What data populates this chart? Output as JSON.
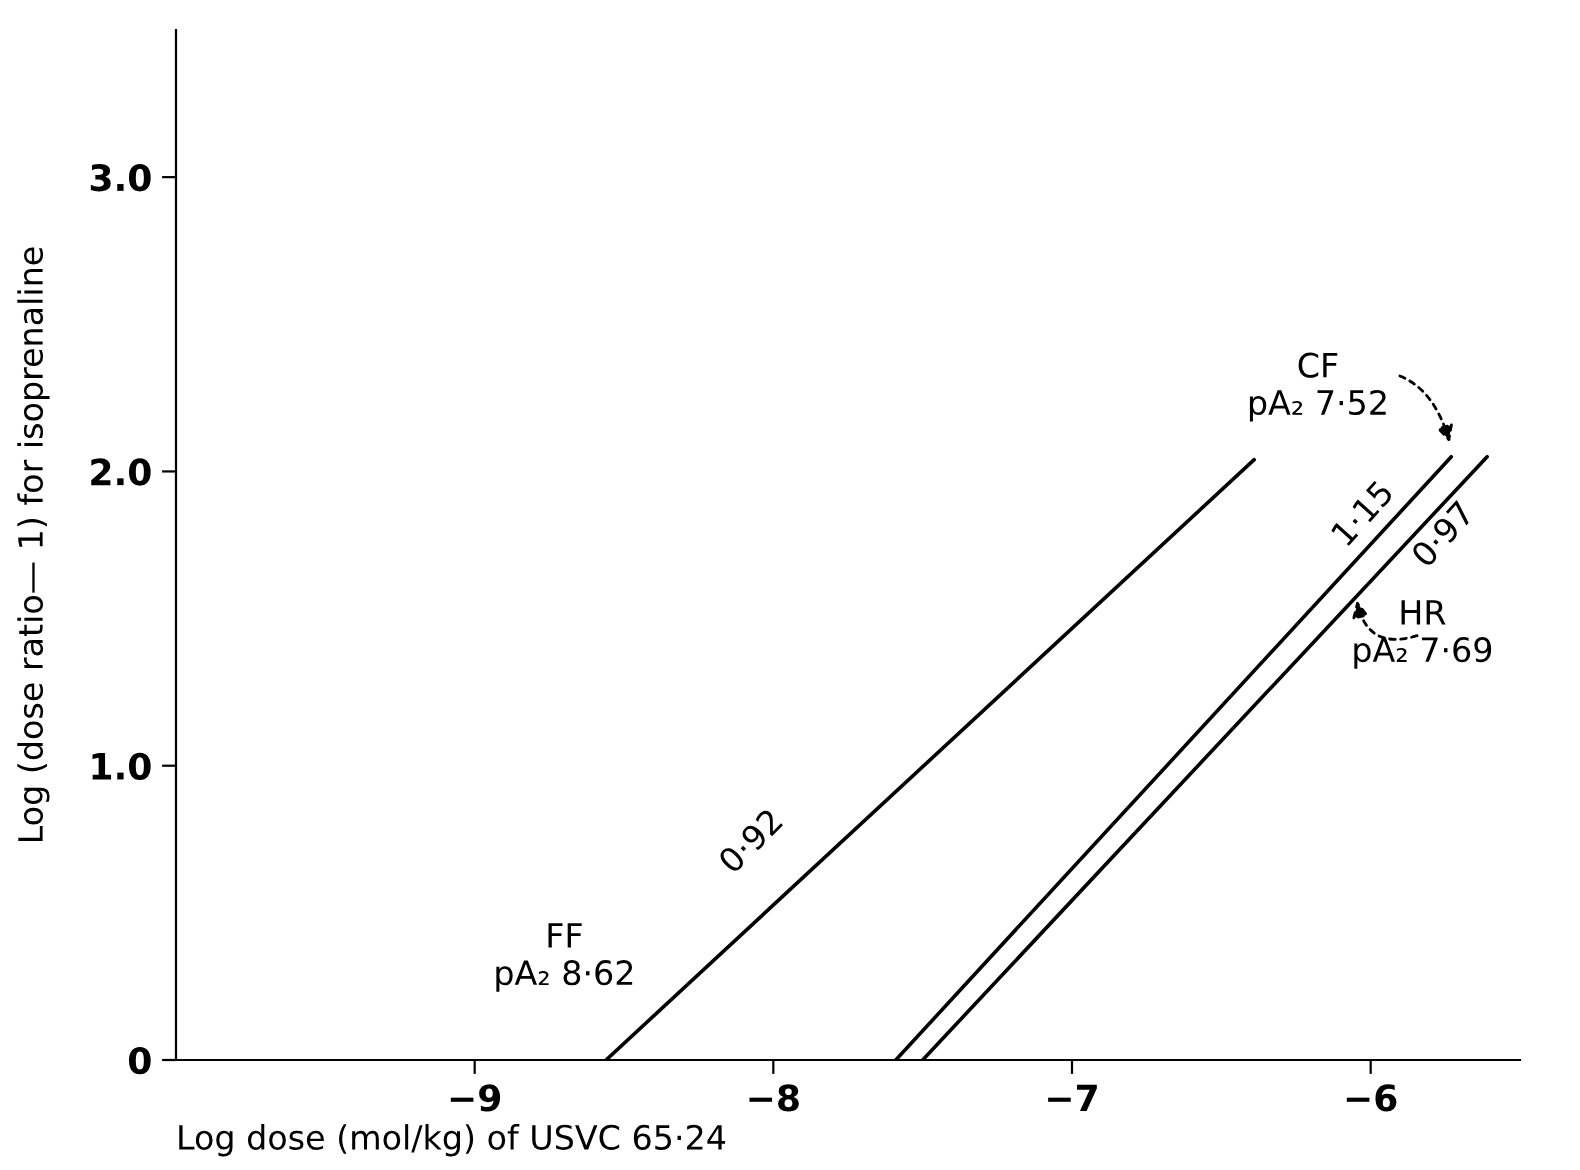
{
  "chart_data": {
    "type": "line",
    "xlabel": "Log dose (mol/kg) of USVC 65·24",
    "ylabel": "Log (dose ratio— 1) for isoprenaline",
    "series": [
      {
        "color": "#000000",
        "x": [
          -8.56,
          -6.39
        ],
        "values": [
          0,
          2.04
        ]
      },
      {
        "color": "#000000",
        "x": [
          -7.59,
          -5.73
        ],
        "values": [
          0,
          2.05
        ]
      },
      {
        "color": "#000000",
        "x": [
          -7.5,
          -5.61
        ],
        "values": [
          0,
          2.05
        ]
      }
    ],
    "xlim": [
      -10.0,
      -5.5
    ],
    "ylim": [
      0,
      3.5
    ],
    "xticks": [
      {
        "value": -9,
        "label": "−9"
      },
      {
        "value": -8,
        "label": "−8"
      },
      {
        "value": -7,
        "label": "−7"
      },
      {
        "value": -6,
        "label": "−6"
      }
    ],
    "yticks": [
      {
        "value": 0,
        "label": "0"
      },
      {
        "value": 1,
        "label": "1.0"
      },
      {
        "value": 2,
        "label": "2.0"
      },
      {
        "value": 3,
        "label": "3.0"
      }
    ],
    "grid": false,
    "legend": false,
    "marker": "none",
    "line_style": "solid",
    "annotations": [
      "0·92",
      "1·15",
      "0·97",
      "FF\npA₂ 8·62",
      {
        "text": "CF\npA₂ 7·52",
        "x": -5.73,
        "y": 2.08
      },
      {
        "text": "HR\npA₂ 7·69",
        "x": -6.05,
        "y": 1.58
      }
    ]
  }
}
